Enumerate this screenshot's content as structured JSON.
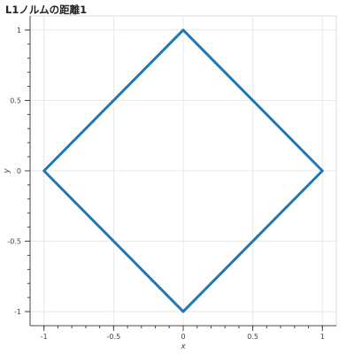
{
  "chart_data": {
    "type": "line",
    "title": "L1ノルムの距離1",
    "xlabel": "x",
    "ylabel": "y",
    "xlim": [
      -1.1,
      1.1
    ],
    "ylim": [
      -1.1,
      1.1
    ],
    "grid": true,
    "x_ticks": [
      -1,
      -0.5,
      0,
      0.5,
      1
    ],
    "x_tick_labels": [
      "-1",
      "-0.5",
      "0",
      "0.5",
      "1"
    ],
    "y_ticks": [
      -1,
      -0.5,
      0,
      0.5,
      1
    ],
    "y_tick_labels": [
      "-1",
      "-0.5",
      "0",
      "0.5",
      "1"
    ],
    "series": [
      {
        "x": [
          1,
          0,
          -1,
          0,
          1
        ],
        "y": [
          0,
          1,
          0,
          -1,
          0
        ],
        "color": "#1f77b4"
      }
    ]
  }
}
